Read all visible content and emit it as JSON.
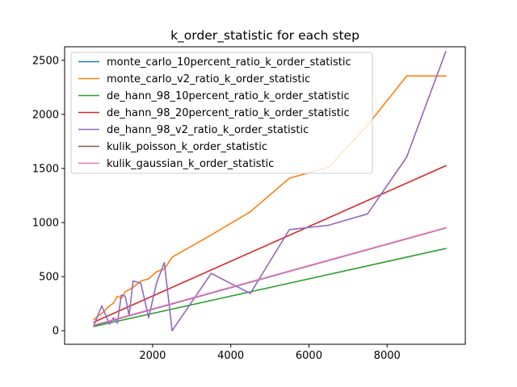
{
  "chart_data": {
    "type": "line",
    "title": "k_order_statistic for each step",
    "xlabel": "",
    "ylabel": "",
    "xlim": [
      -250,
      10000
    ],
    "ylim": [
      -125,
      2625
    ],
    "x_ticks": [
      2000,
      4000,
      6000,
      8000
    ],
    "y_ticks": [
      0,
      500,
      1000,
      1500,
      2000,
      2500
    ],
    "grid": false,
    "legend_position": "upper-left",
    "series": [
      {
        "name": "monte_carlo_10percent_ratio_k_order_statistic",
        "color": "#1f77b4",
        "x": [
          500,
          9500
        ],
        "y": [
          48,
          950
        ]
      },
      {
        "name": "monte_carlo_v2_ratio_k_order_statistic",
        "color": "#ff7f0e",
        "x": [
          500,
          700,
          900,
          1000,
          1100,
          1200,
          1300,
          1500,
          1700,
          1900,
          2100,
          2300,
          2500,
          3500,
          4500,
          5500,
          6500,
          7500,
          8500,
          9500
        ],
        "y": [
          105,
          160,
          230,
          255,
          320,
          300,
          360,
          400,
          460,
          480,
          545,
          570,
          680,
          885,
          1100,
          1410,
          1510,
          1900,
          2355,
          2355
        ]
      },
      {
        "name": "de_hann_98_10percent_ratio_k_order_statistic",
        "color": "#2ca02c",
        "x": [
          500,
          9500
        ],
        "y": [
          40,
          760
        ]
      },
      {
        "name": "de_hann_98_20percent_ratio_k_order_statistic",
        "color": "#d62728",
        "x": [
          500,
          9500
        ],
        "y": [
          80,
          1525
        ]
      },
      {
        "name": "de_hann_98_v2_ratio_k_order_statistic",
        "color": "#9467bd",
        "x": [
          500,
          700,
          900,
          1000,
          1100,
          1200,
          1300,
          1400,
          1500,
          1700,
          1900,
          2100,
          2300,
          2500,
          3500,
          4500,
          5500,
          6500,
          7500,
          8500,
          9500
        ],
        "y": [
          50,
          230,
          60,
          120,
          70,
          330,
          320,
          140,
          460,
          440,
          120,
          440,
          630,
          0,
          530,
          345,
          935,
          975,
          1080,
          1605,
          2580
        ]
      },
      {
        "name": "kulik_poisson_k_order_statistic",
        "color": "#8c564b",
        "x": [
          500,
          9500
        ],
        "y": [
          50,
          950
        ]
      },
      {
        "name": "kulik_gaussian_k_order_statistic",
        "color": "#e377c2",
        "x": [
          500,
          9500
        ],
        "y": [
          52,
          952
        ]
      }
    ]
  }
}
